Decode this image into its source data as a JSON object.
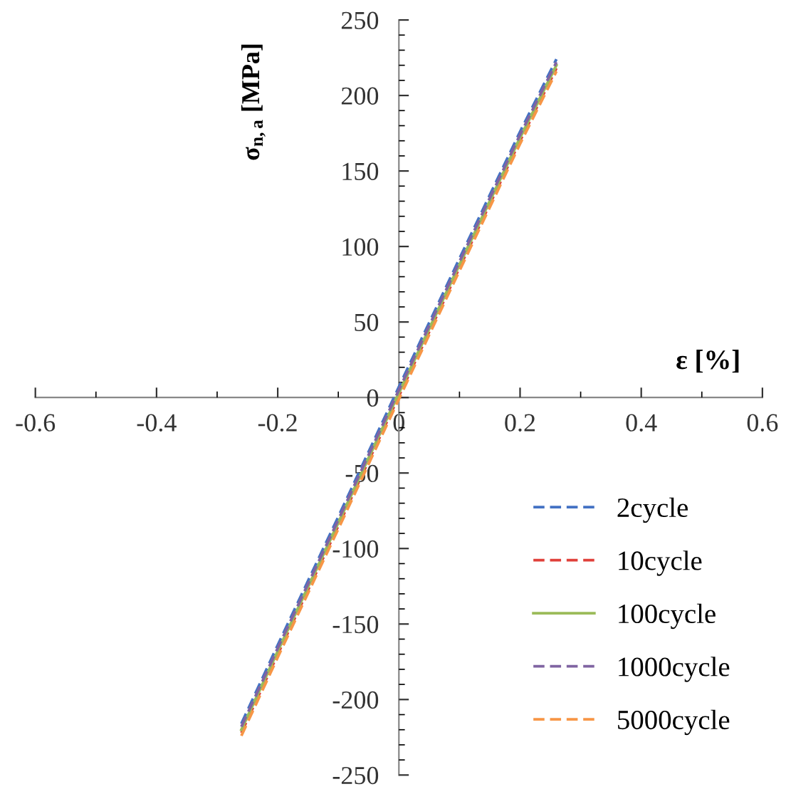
{
  "chart_data": {
    "type": "line",
    "xlabel": "ε [%]",
    "ylabel": "σ$_{n,a}$ [MPa]",
    "xlim": [
      -0.6,
      0.6
    ],
    "xticks": [
      -0.6,
      -0.4,
      -0.2,
      {
        "value": 0,
        "label": "0"
      },
      0.2,
      0.4,
      0.6
    ],
    "ylim": [
      -250,
      250
    ],
    "yticks": [
      -250,
      -200,
      -150,
      -100,
      -50,
      0,
      50,
      100,
      150,
      200,
      250
    ],
    "grid": false,
    "legend": "bottom right",
    "marker": "none",
    "x": [
      -0.26,
      -0.2,
      -0.1,
      0,
      0.1,
      0.2,
      0.26
    ],
    "series": [
      {
        "name": "2cycle",
        "color": "#4472c4",
        "line_style": "dashed",
        "values": [
          -216,
          -164,
          -79,
          7,
          92,
          176,
          224
        ]
      },
      {
        "name": "10cycle",
        "color": "#e0403a",
        "line_style": "dashed",
        "values": [
          -222,
          -170,
          -85,
          1,
          86,
          170,
          218
        ]
      },
      {
        "name": "100cycle",
        "color": "#9bbb59",
        "line_style": "solid",
        "values": [
          -220,
          -168,
          -83,
          3,
          88,
          172,
          220
        ]
      },
      {
        "name": "1000cycle",
        "color": "#8064a2",
        "line_style": "dashed",
        "values": [
          -218,
          -166,
          -81,
          5,
          90,
          174,
          222
        ]
      },
      {
        "name": "5000cycle",
        "color": "#f79646",
        "line_style": "dashed",
        "values": [
          -224,
          -172,
          -87,
          -1,
          84,
          168,
          216
        ]
      }
    ]
  }
}
